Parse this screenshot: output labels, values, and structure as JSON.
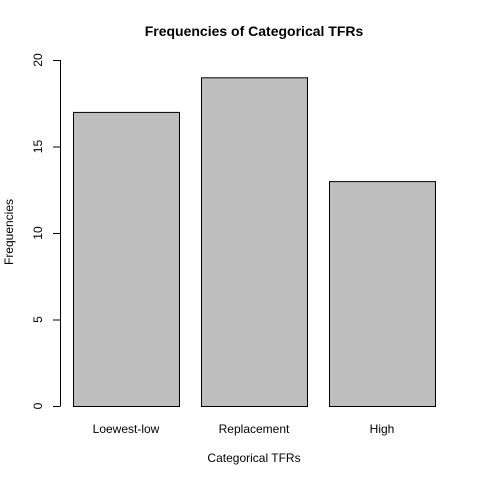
{
  "chart_data": {
    "type": "bar",
    "title": "Frequencies of Categorical TFRs",
    "xlabel": "Categorical TFRs",
    "ylabel": "Frequencies",
    "categories": [
      "Loewest-low",
      "Replacement",
      "High"
    ],
    "values": [
      17,
      19,
      13
    ],
    "ylim": [
      0,
      20
    ],
    "yticks": [
      0,
      5,
      10,
      15,
      20
    ],
    "grid": false,
    "colors": {
      "bar_fill": "#bebebe",
      "bar_stroke": "#000000",
      "axis": "#000000",
      "background": "#ffffff"
    }
  }
}
